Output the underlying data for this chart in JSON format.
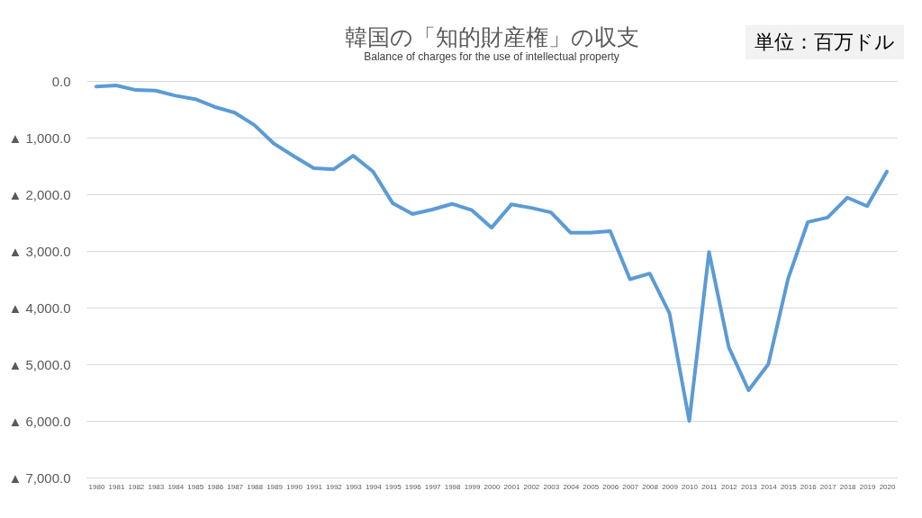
{
  "chart_data": {
    "type": "line",
    "title": "韓国の「知的財産権」の収支",
    "subtitle": "Balance of charges for the use of intellectual property",
    "annotations": [
      "単位：百万ドル"
    ],
    "categories": [
      "1980",
      "1981",
      "1982",
      "1983",
      "1984",
      "1985",
      "1986",
      "1987",
      "1988",
      "1989",
      "1990",
      "1991",
      "1992",
      "1993",
      "1994",
      "1995",
      "1996",
      "1997",
      "1998",
      "1999",
      "2000",
      "2001",
      "2002",
      "2003",
      "2004",
      "2005",
      "2006",
      "2007",
      "2008",
      "2009",
      "2010",
      "2011",
      "2012",
      "2013",
      "2014",
      "2015",
      "2016",
      "2017",
      "2018",
      "2019",
      "2020"
    ],
    "series": [
      {
        "color": "#5b9bd5",
        "values": [
          -100,
          -80,
          -160,
          -170,
          -260,
          -320,
          -460,
          -560,
          -780,
          -1110,
          -1330,
          -1540,
          -1560,
          -1320,
          -1600,
          -2160,
          -2350,
          -2270,
          -2170,
          -2280,
          -2590,
          -2180,
          -2240,
          -2320,
          -2680,
          -2680,
          -2650,
          -3500,
          -3400,
          -4100,
          -6000,
          -3020,
          -4700,
          -5460,
          -5000,
          -3490,
          -2490,
          -2410,
          -2060,
          -2210,
          -1600
        ]
      }
    ],
    "ylim": [
      -7000,
      0
    ],
    "yticks": [
      {
        "value": 0,
        "label": "0.0"
      },
      {
        "value": -1000,
        "label": "▲ 1,000.0"
      },
      {
        "value": -2000,
        "label": "▲ 2,000.0"
      },
      {
        "value": -3000,
        "label": "▲ 3,000.0"
      },
      {
        "value": -4000,
        "label": "▲ 4,000.0"
      },
      {
        "value": -5000,
        "label": "▲ 5,000.0"
      },
      {
        "value": -6000,
        "label": "▲ 6,000.0"
      },
      {
        "value": -7000,
        "label": "▲ 7,000.0"
      }
    ],
    "grid": "y",
    "marker": "none",
    "line_style": "solid"
  }
}
